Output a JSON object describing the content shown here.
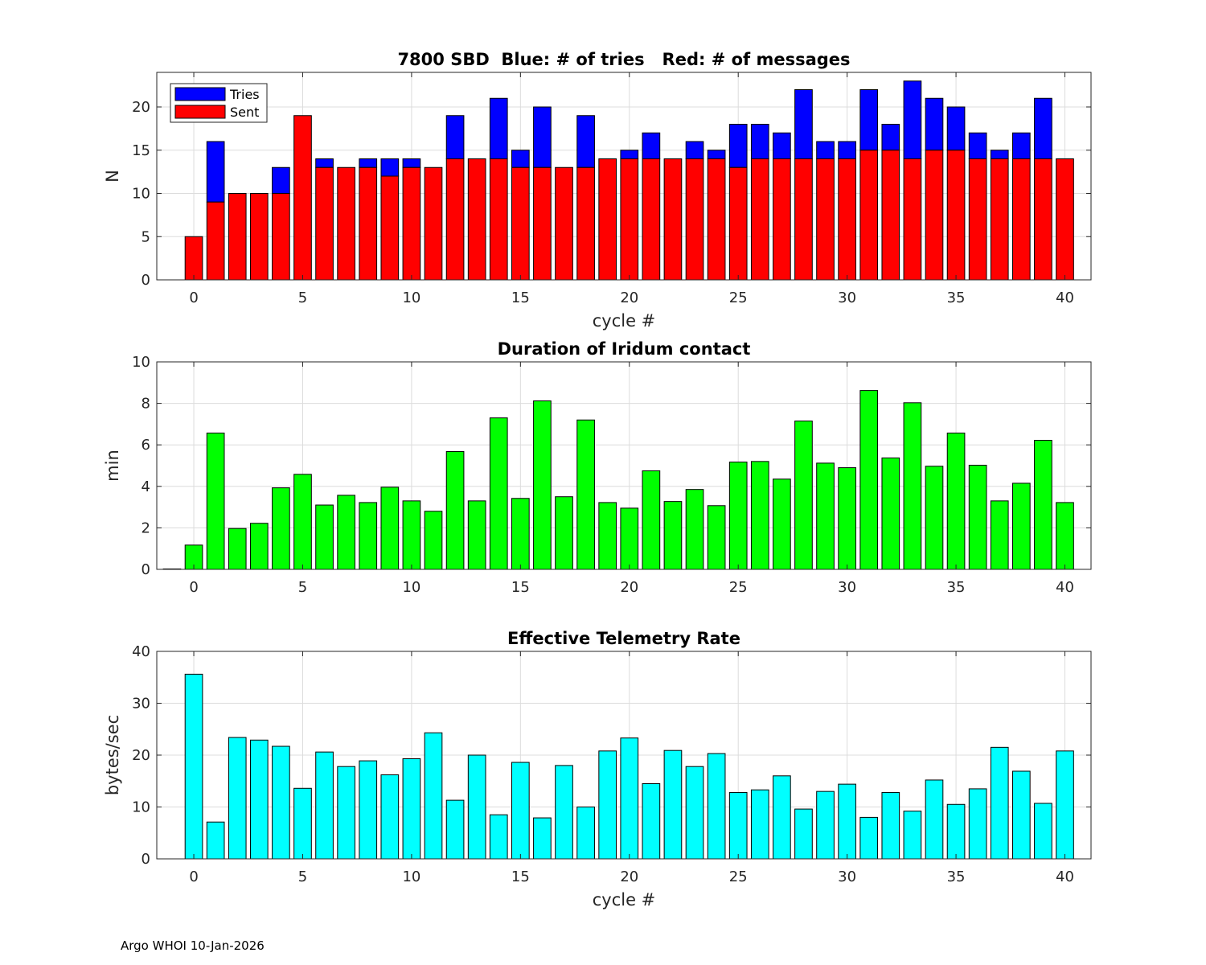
{
  "footer": "Argo WHOI 10-Jan-2026",
  "colors": {
    "tries": "#0000ff",
    "sent": "#ff0000",
    "duration": "#00ff00",
    "rate": "#00ffff"
  },
  "chart_data": [
    {
      "type": "bar",
      "title": "7800 SBD  Blue: # of tries   Red: # of messages",
      "xlabel": "cycle #",
      "ylabel": "N",
      "xlim": [
        -1.7,
        41.2
      ],
      "ylim": [
        0,
        24
      ],
      "xticks": [
        0,
        5,
        10,
        15,
        20,
        25,
        30,
        35,
        40
      ],
      "yticks": [
        0,
        5,
        10,
        15,
        20
      ],
      "legend": [
        "Tries",
        "Sent"
      ],
      "legend_position": "top-left",
      "x": [
        0,
        1,
        2,
        3,
        4,
        5,
        6,
        7,
        8,
        9,
        10,
        11,
        12,
        13,
        14,
        15,
        16,
        17,
        18,
        19,
        20,
        21,
        22,
        23,
        24,
        25,
        26,
        27,
        28,
        29,
        30,
        31,
        32,
        33,
        34,
        35,
        36,
        37,
        38,
        39,
        40
      ],
      "series": [
        {
          "name": "Tries",
          "values": [
            5,
            16,
            10,
            10,
            13,
            19,
            14,
            13,
            14,
            14,
            14,
            13,
            19,
            14,
            21,
            15,
            20,
            13,
            19,
            14,
            15,
            17,
            14,
            16,
            15,
            18,
            18,
            17,
            22,
            16,
            16,
            22,
            18,
            23,
            21,
            20,
            17,
            15,
            17,
            21,
            14
          ]
        },
        {
          "name": "Sent",
          "values": [
            5,
            9,
            10,
            10,
            10,
            19,
            13,
            13,
            13,
            12,
            13,
            13,
            14,
            14,
            14,
            13,
            13,
            13,
            13,
            14,
            14,
            14,
            14,
            14,
            14,
            13,
            14,
            14,
            14,
            14,
            14,
            15,
            15,
            14,
            15,
            15,
            14,
            14,
            14,
            14,
            14
          ]
        }
      ]
    },
    {
      "type": "bar",
      "title": "Duration of Iridum contact",
      "xlabel": "",
      "ylabel": "min",
      "xlim": [
        -1.7,
        41.2
      ],
      "ylim": [
        0,
        10
      ],
      "xticks": [
        0,
        5,
        10,
        15,
        20,
        25,
        30,
        35,
        40
      ],
      "yticks": [
        0,
        2,
        4,
        6,
        8,
        10
      ],
      "x": [
        -1,
        0,
        1,
        2,
        3,
        4,
        5,
        6,
        7,
        8,
        9,
        10,
        11,
        12,
        13,
        14,
        15,
        16,
        17,
        18,
        19,
        20,
        21,
        22,
        23,
        24,
        25,
        26,
        27,
        28,
        29,
        30,
        31,
        32,
        33,
        34,
        35,
        36,
        37,
        38,
        39,
        40
      ],
      "values": [
        0.02,
        1.17,
        6.57,
        1.97,
        2.22,
        3.93,
        4.58,
        3.1,
        3.57,
        3.22,
        3.96,
        3.3,
        2.8,
        5.68,
        3.3,
        7.3,
        3.42,
        8.12,
        3.5,
        7.2,
        3.22,
        2.95,
        4.75,
        3.27,
        3.85,
        3.07,
        5.17,
        5.2,
        4.35,
        7.15,
        5.12,
        4.9,
        8.62,
        5.37,
        8.03,
        4.97,
        6.57,
        5.02,
        3.3,
        4.15,
        6.22,
        3.22
      ]
    },
    {
      "type": "bar",
      "title": "Effective Telemetry Rate",
      "xlabel": "cycle #",
      "ylabel": "bytes/sec",
      "xlim": [
        -1.7,
        41.2
      ],
      "ylim": [
        0,
        40
      ],
      "xticks": [
        0,
        5,
        10,
        15,
        20,
        25,
        30,
        35,
        40
      ],
      "yticks": [
        0,
        10,
        20,
        30,
        40
      ],
      "x": [
        0,
        1,
        2,
        3,
        4,
        5,
        6,
        7,
        8,
        9,
        10,
        11,
        12,
        13,
        14,
        15,
        16,
        17,
        18,
        19,
        20,
        21,
        22,
        23,
        24,
        25,
        26,
        27,
        28,
        29,
        30,
        31,
        32,
        33,
        34,
        35,
        36,
        37,
        38,
        39,
        40
      ],
      "values": [
        35.6,
        7.1,
        23.4,
        22.9,
        21.7,
        13.6,
        20.6,
        17.8,
        18.9,
        16.2,
        19.3,
        24.3,
        11.3,
        20.0,
        8.5,
        18.6,
        7.9,
        18.0,
        10.0,
        20.8,
        23.3,
        14.5,
        20.9,
        17.8,
        20.3,
        12.8,
        13.3,
        16.0,
        9.6,
        13.0,
        14.4,
        8.0,
        12.8,
        9.2,
        15.2,
        10.5,
        13.5,
        21.5,
        16.9,
        10.7,
        20.8
      ]
    }
  ]
}
